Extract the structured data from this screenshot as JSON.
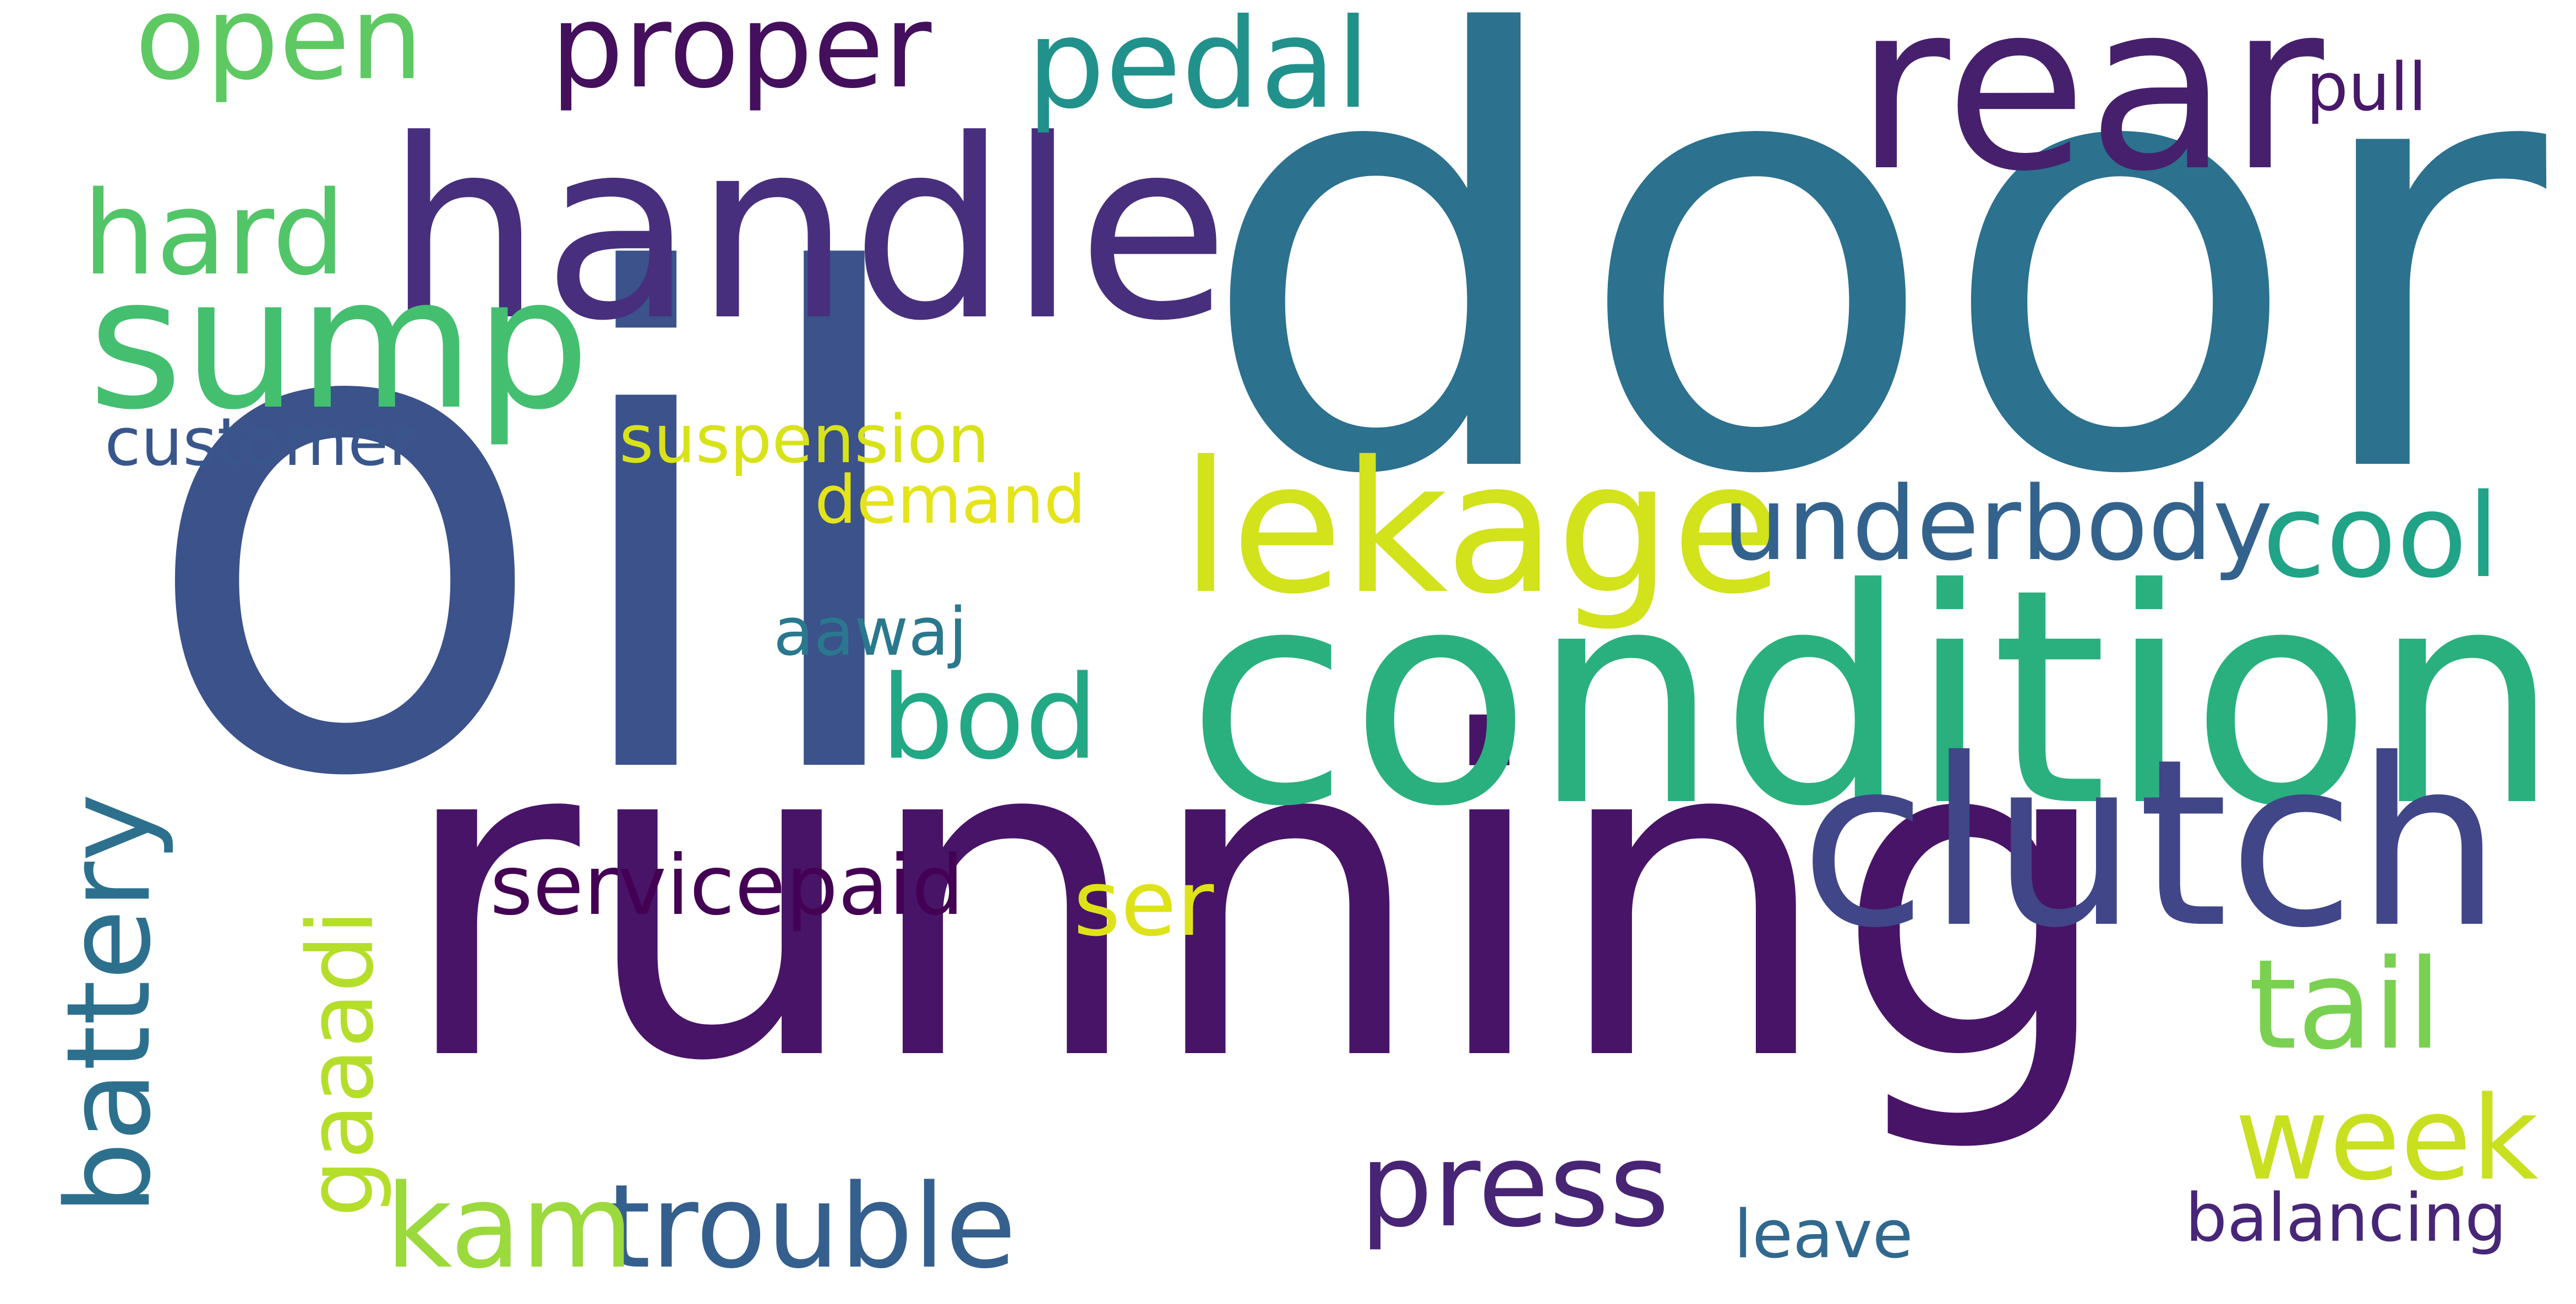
{
  "words": [
    {
      "text": "door",
      "color": "#2c718e"
    },
    {
      "text": "oil",
      "color": "#3b528b"
    },
    {
      "text": "running",
      "color": "#481467"
    },
    {
      "text": "condition",
      "color": "#2ab07f"
    },
    {
      "text": "handle",
      "color": "#472f7d"
    },
    {
      "text": "rear",
      "color": "#46206c"
    },
    {
      "text": "clutch",
      "color": "#404688"
    },
    {
      "text": "sump",
      "color": "#44bf70"
    },
    {
      "text": "lekage",
      "color": "#d2e21b"
    },
    {
      "text": "proper",
      "color": "#440f5c"
    },
    {
      "text": "pedal",
      "color": "#21918c"
    },
    {
      "text": "open",
      "color": "#5ec962"
    },
    {
      "text": "hard",
      "color": "#52c569"
    },
    {
      "text": "underbody",
      "color": "#33638d"
    },
    {
      "text": "cool",
      "color": "#20a386"
    },
    {
      "text": "bod",
      "color": "#22a884"
    },
    {
      "text": "press",
      "color": "#482475"
    },
    {
      "text": "tail",
      "color": "#7ad151"
    },
    {
      "text": "week",
      "color": "#c8e020"
    },
    {
      "text": "trouble",
      "color": "#355f8d"
    },
    {
      "text": "kam",
      "color": "#9bd93c"
    },
    {
      "text": "battery",
      "color": "#2d708e"
    },
    {
      "text": "gaaadi",
      "color": "#b5de2b"
    },
    {
      "text": "servicepaid",
      "color": "#440154"
    },
    {
      "text": "ser",
      "color": "#dde318"
    },
    {
      "text": "customer",
      "color": "#39568c"
    },
    {
      "text": "suspension",
      "color": "#d8e219"
    },
    {
      "text": "demand",
      "color": "#e5e419"
    },
    {
      "text": "aawaj",
      "color": "#2a788e"
    },
    {
      "text": "pull",
      "color": "#48186a"
    },
    {
      "text": "leave",
      "color": "#31688e"
    },
    {
      "text": "balancing",
      "color": "#482677"
    }
  ]
}
